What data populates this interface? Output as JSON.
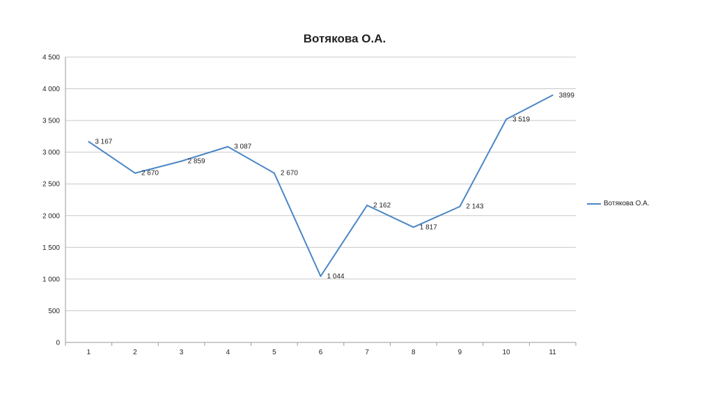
{
  "chart_data": {
    "type": "line",
    "title": "Вотякова О.А.",
    "categories": [
      "1",
      "2",
      "3",
      "4",
      "5",
      "6",
      "7",
      "8",
      "9",
      "10",
      "11"
    ],
    "series": [
      {
        "name": "Вотякова О.А.",
        "values": [
          3167,
          2670,
          2859,
          3087,
          2670,
          1044,
          2162,
          1817,
          2143,
          3519,
          3899
        ],
        "labels": [
          "3 167",
          "2 670",
          "2 859",
          "3 087",
          "2 670",
          "1 044",
          "2 162",
          "1 817",
          "2 143",
          "3 519",
          "3899"
        ],
        "color": "#4a86c5"
      }
    ],
    "ylim": [
      0,
      4500
    ],
    "yticks": [
      0,
      500,
      1000,
      1500,
      2000,
      2500,
      3000,
      3500,
      4000,
      4500
    ],
    "ytick_labels": [
      "0",
      "500",
      "1 000",
      "1 500",
      "2 000",
      "2 500",
      "3 000",
      "3 500",
      "4 000",
      "4 500"
    ],
    "grid": true,
    "legend_position": "right"
  }
}
